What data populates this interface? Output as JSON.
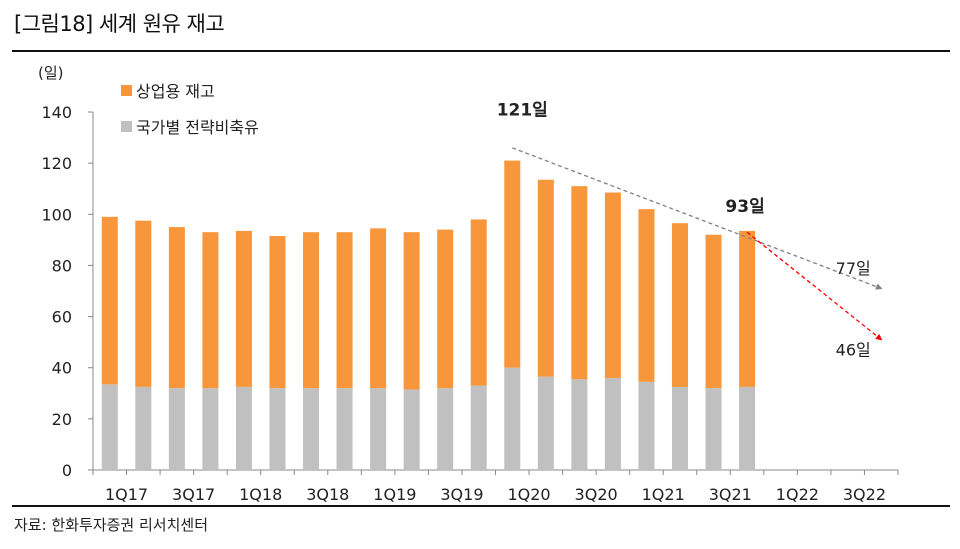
{
  "header": {
    "title": "[그림18]  세계 원유 재고"
  },
  "footer": {
    "source": "자료: 한화투자증권 리서치센터"
  },
  "chart_data": {
    "type": "bar",
    "stacked": true,
    "unit_label": "(일)",
    "ylim": [
      0,
      140
    ],
    "yticks": [
      0,
      20,
      40,
      60,
      80,
      100,
      120,
      140
    ],
    "categories": [
      "1Q17",
      "2Q17",
      "3Q17",
      "4Q17",
      "1Q18",
      "2Q18",
      "3Q18",
      "4Q18",
      "1Q19",
      "2Q19",
      "3Q19",
      "4Q19",
      "1Q20",
      "2Q20",
      "3Q20",
      "4Q20",
      "1Q21",
      "2Q21",
      "3Q21",
      "4Q21",
      "1Q22",
      "2Q22",
      "3Q22",
      "4Q22"
    ],
    "xtick_labels": [
      "1Q17",
      "3Q17",
      "1Q18",
      "3Q18",
      "1Q19",
      "3Q19",
      "1Q20",
      "3Q20",
      "1Q21",
      "3Q21",
      "1Q22",
      "3Q22"
    ],
    "series": [
      {
        "name": "국가별 전략비축유",
        "color": "#c0c0c0",
        "values": [
          33.5,
          32.5,
          32,
          32,
          32.5,
          32,
          32,
          32,
          32,
          31.5,
          32,
          33,
          40,
          36.5,
          35.5,
          36,
          34.5,
          32.5,
          32,
          32.5,
          null,
          null,
          null,
          null
        ]
      },
      {
        "name": "상업용 재고",
        "color": "#f7963a",
        "values": [
          65.5,
          65,
          63,
          61,
          61,
          59.5,
          61,
          61,
          62.5,
          61.5,
          62,
          65,
          81,
          77,
          75.5,
          72.5,
          67.5,
          64,
          60,
          61,
          null,
          null,
          null,
          null
        ]
      }
    ],
    "legend": [
      "상업용 재고",
      "국가별 전략비축유"
    ],
    "annotations": [
      {
        "text": "121일",
        "x": "1Q20",
        "y": 121,
        "bold": true
      },
      {
        "text": "93일",
        "x": "4Q21",
        "y": 93,
        "bold": true
      },
      {
        "text": "77일",
        "x": "4Q22",
        "y": 77,
        "bold": false
      },
      {
        "text": "46일",
        "x": "4Q22",
        "y": 46,
        "bold": false
      }
    ],
    "trend_lines": [
      {
        "name": "gray-trend",
        "color": "#808080",
        "from": {
          "x": "1Q20",
          "y": 126
        },
        "to": {
          "x": "4Q22",
          "y": 71
        }
      },
      {
        "name": "red-trend",
        "color": "#ff0000",
        "from": {
          "x": "4Q21",
          "y": 93
        },
        "to": {
          "x": "4Q22",
          "y": 51
        }
      }
    ]
  }
}
